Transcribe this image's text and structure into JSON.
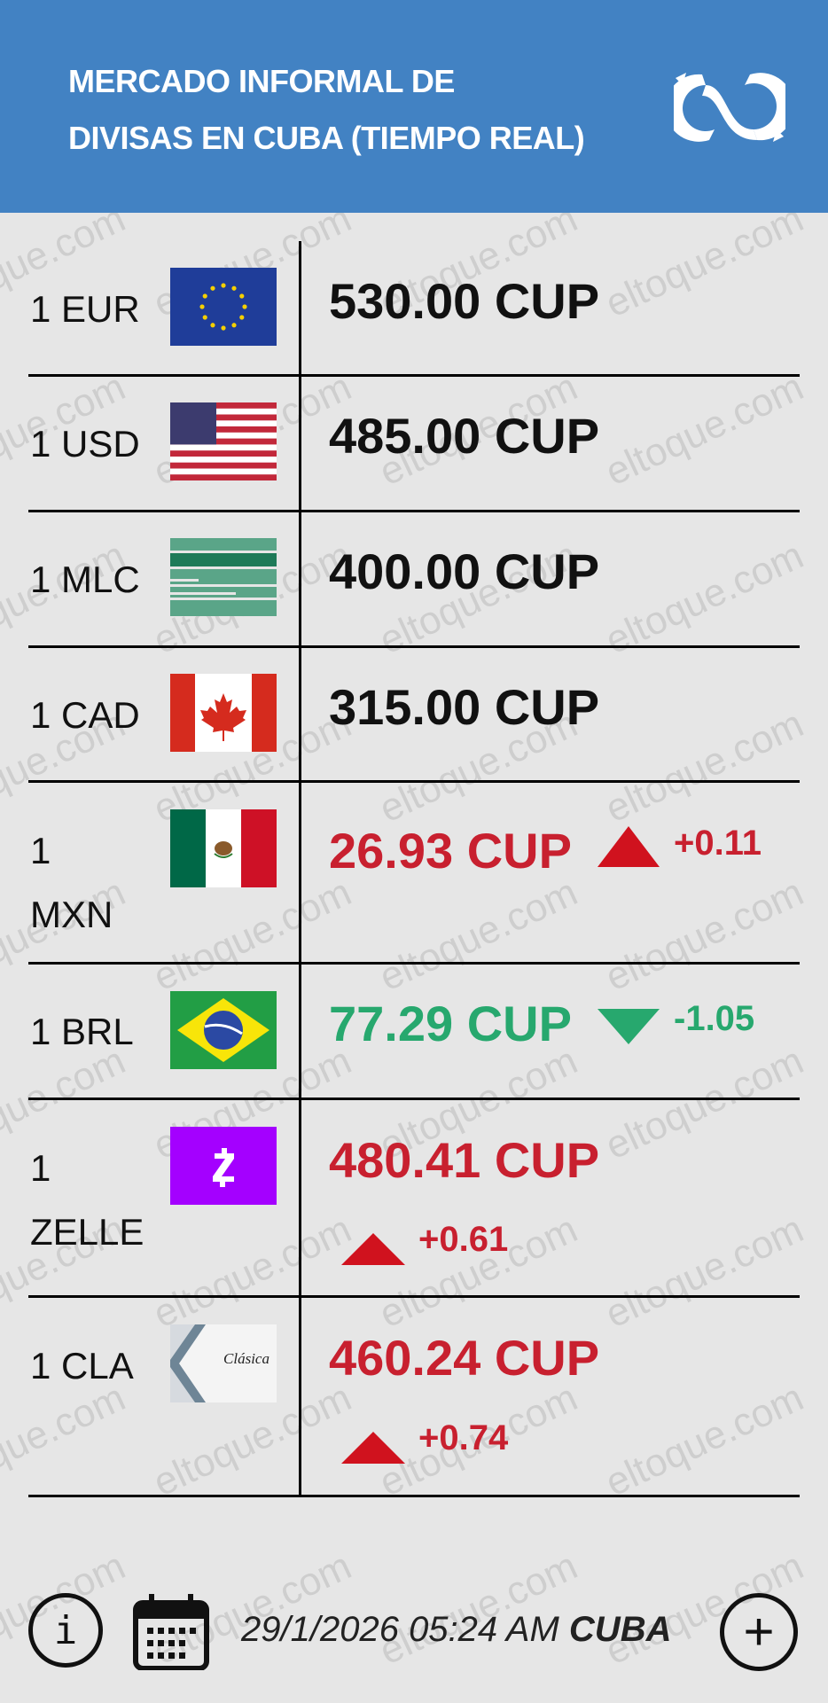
{
  "header": {
    "title_line1": "MERCADO INFORMAL DE",
    "title_line2": "DIVISAS EN CUBA (TIEMPO REAL)",
    "logo_icon": "eltoque-logo-icon",
    "background_color": "#4282c3"
  },
  "watermark": "eltoque.com",
  "colors": {
    "up": "#c8202f",
    "down": "#27a86e",
    "neutral": "#111111"
  },
  "rates": [
    {
      "label": "1 EUR",
      "flag": "eu-flag-icon",
      "value": "530.00 CUP",
      "trend": "none"
    },
    {
      "label": "1 USD",
      "flag": "us-flag-icon",
      "value": "485.00 CUP",
      "trend": "none"
    },
    {
      "label": "1 MLC",
      "flag": "mlc-card-icon",
      "value": "400.00 CUP",
      "trend": "none"
    },
    {
      "label": "1 CAD",
      "flag": "canada-flag-icon",
      "value": "315.00 CUP",
      "trend": "none"
    },
    {
      "label": "1 MXN",
      "flag": "mexico-flag-icon",
      "value": "26.93 CUP",
      "trend": "up",
      "change": "+0.11"
    },
    {
      "label": "1 BRL",
      "flag": "brazil-flag-icon",
      "value": "77.29 CUP",
      "trend": "down",
      "change": "-1.05"
    },
    {
      "label": "1 ZELLE",
      "flag": "zelle-logo-icon",
      "value": "480.41 CUP",
      "trend": "up",
      "change": "+0.61"
    },
    {
      "label": "1 CLA",
      "flag": "clasica-card-icon",
      "value": "460.24 CUP",
      "trend": "up",
      "change": "+0.74",
      "card_text": "Clásica"
    }
  ],
  "footer": {
    "date": "29/1/2026 05:24 AM",
    "region": "CUBA",
    "info_label": "i",
    "add_label": "+"
  }
}
